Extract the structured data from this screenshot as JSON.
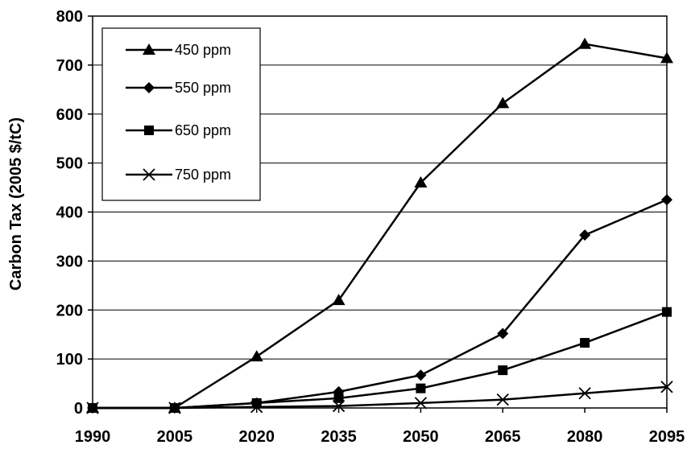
{
  "chart_data": {
    "type": "line",
    "title": "",
    "xlabel": "",
    "ylabel": "Carbon Tax (2005 $/tC)",
    "x": [
      1990,
      2005,
      2020,
      2035,
      2050,
      2065,
      2080,
      2095
    ],
    "xlim": [
      1990,
      2095
    ],
    "ylim": [
      0,
      800
    ],
    "yticks": [
      0,
      100,
      200,
      300,
      400,
      500,
      600,
      700,
      800
    ],
    "grid": "horizontal",
    "legend_position": "top-left",
    "series": [
      {
        "name": "450 ppm",
        "marker": "triangle",
        "values": [
          0,
          0,
          105,
          220,
          460,
          622,
          743,
          714
        ]
      },
      {
        "name": "550 ppm",
        "marker": "diamond",
        "values": [
          0,
          0,
          10,
          33,
          67,
          152,
          353,
          425
        ]
      },
      {
        "name": "650 ppm",
        "marker": "square",
        "values": [
          0,
          0,
          10,
          20,
          40,
          77,
          133,
          196
        ]
      },
      {
        "name": "750 ppm",
        "marker": "x",
        "values": [
          0,
          0,
          2,
          4,
          10,
          17,
          30,
          43
        ]
      }
    ]
  }
}
